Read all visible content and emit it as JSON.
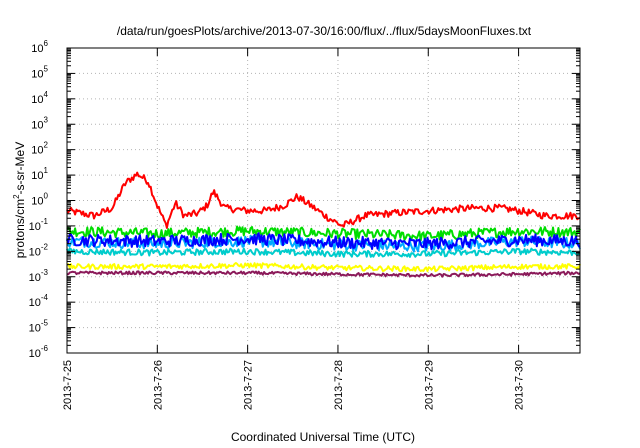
{
  "chart_data": {
    "type": "line",
    "title": "/data/run/goesPlots/archive/2013-07-30/16:00/flux/../flux/5daysMoonFluxes.txt",
    "xlabel": "Coordinated Universal Time (UTC)",
    "ylabel": {
      "base": "protons/cm",
      "sup": "2",
      "rest": "-s-sr-MeV"
    },
    "xlim_days": [
      0,
      5.68
    ],
    "x_ticks": [
      {
        "d": 0,
        "label": "2013-7-25"
      },
      {
        "d": 1,
        "label": "2013-7-26"
      },
      {
        "d": 2,
        "label": "2013-7-27"
      },
      {
        "d": 3,
        "label": "2013-7-28"
      },
      {
        "d": 4,
        "label": "2013-7-29"
      },
      {
        "d": 5,
        "label": "2013-7-30"
      }
    ],
    "y_scale": "log",
    "ylim": [
      1e-06,
      1000000.0
    ],
    "y_ticks": [
      {
        "e": 6,
        "label": "6"
      },
      {
        "e": 5,
        "label": "5"
      },
      {
        "e": 4,
        "label": "4"
      },
      {
        "e": 3,
        "label": "3"
      },
      {
        "e": 2,
        "label": "2"
      },
      {
        "e": 1,
        "label": "1"
      },
      {
        "e": 0,
        "label": "0"
      },
      {
        "e": -1,
        "label": "-1"
      },
      {
        "e": -2,
        "label": "-2"
      },
      {
        "e": -3,
        "label": "-3"
      },
      {
        "e": -4,
        "label": "-4"
      },
      {
        "e": -5,
        "label": "-5"
      },
      {
        "e": -6,
        "label": "-6"
      }
    ],
    "grid": true,
    "series": [
      {
        "color": "#ff0000",
        "knots": [
          [
            0,
            -0.4
          ],
          [
            0.3,
            -0.6
          ],
          [
            0.5,
            -0.3
          ],
          [
            0.65,
            0.7
          ],
          [
            0.78,
            1.05
          ],
          [
            0.9,
            0.75
          ],
          [
            1.0,
            -0.2
          ],
          [
            1.1,
            -1.0
          ],
          [
            1.2,
            -0.1
          ],
          [
            1.3,
            -0.6
          ],
          [
            1.45,
            -0.5
          ],
          [
            1.55,
            -0.2
          ],
          [
            1.62,
            0.35
          ],
          [
            1.75,
            -0.3
          ],
          [
            2.0,
            -0.4
          ],
          [
            2.2,
            -0.4
          ],
          [
            2.4,
            -0.2
          ],
          [
            2.55,
            0.15
          ],
          [
            2.7,
            -0.2
          ],
          [
            2.9,
            -0.7
          ],
          [
            3.05,
            -1.0
          ],
          [
            3.3,
            -0.6
          ],
          [
            3.6,
            -0.5
          ],
          [
            4.0,
            -0.4
          ],
          [
            4.5,
            -0.3
          ],
          [
            4.8,
            -0.3
          ],
          [
            5.0,
            -0.4
          ],
          [
            5.3,
            -0.6
          ],
          [
            5.68,
            -0.6
          ]
        ],
        "noise": 0.14
      },
      {
        "color": "#00dd00",
        "knots": [
          [
            0,
            -1.2
          ],
          [
            1.0,
            -1.3
          ],
          [
            2.0,
            -1.2
          ],
          [
            3.0,
            -1.3
          ],
          [
            4.0,
            -1.4
          ],
          [
            5.0,
            -1.2
          ],
          [
            5.68,
            -1.25
          ]
        ],
        "noise": 0.2
      },
      {
        "color": "#00aaff",
        "knots": [
          [
            0,
            -1.6
          ],
          [
            1.0,
            -1.7
          ],
          [
            2.0,
            -1.6
          ],
          [
            3.0,
            -1.75
          ],
          [
            4.0,
            -1.8
          ],
          [
            5.0,
            -1.6
          ],
          [
            5.68,
            -1.7
          ]
        ],
        "noise": 0.22
      },
      {
        "color": "#0000ff",
        "knots": [
          [
            0,
            -1.55
          ],
          [
            1.0,
            -1.6
          ],
          [
            2.0,
            -1.5
          ],
          [
            3.0,
            -1.65
          ],
          [
            4.0,
            -1.7
          ],
          [
            5.0,
            -1.55
          ],
          [
            5.68,
            -1.6
          ]
        ],
        "noise": 0.24
      },
      {
        "color": "#00cccc",
        "knots": [
          [
            0,
            -2.0
          ],
          [
            1.0,
            -2.05
          ],
          [
            2.0,
            -2.0
          ],
          [
            3.0,
            -2.1
          ],
          [
            4.0,
            -2.1
          ],
          [
            5.0,
            -2.0
          ],
          [
            5.68,
            -2.05
          ]
        ],
        "noise": 0.12
      },
      {
        "color": "#ffff00",
        "knots": [
          [
            0,
            -2.6
          ],
          [
            1.0,
            -2.6
          ],
          [
            2.0,
            -2.55
          ],
          [
            3.0,
            -2.65
          ],
          [
            4.0,
            -2.7
          ],
          [
            5.0,
            -2.6
          ],
          [
            5.68,
            -2.6
          ]
        ],
        "noise": 0.1
      },
      {
        "color": "#8b1a5a",
        "knots": [
          [
            0,
            -2.85
          ],
          [
            1.0,
            -2.85
          ],
          [
            2.0,
            -2.85
          ],
          [
            3.0,
            -2.9
          ],
          [
            4.0,
            -2.95
          ],
          [
            5.0,
            -2.9
          ],
          [
            5.68,
            -2.85
          ]
        ],
        "noise": 0.06
      }
    ]
  }
}
